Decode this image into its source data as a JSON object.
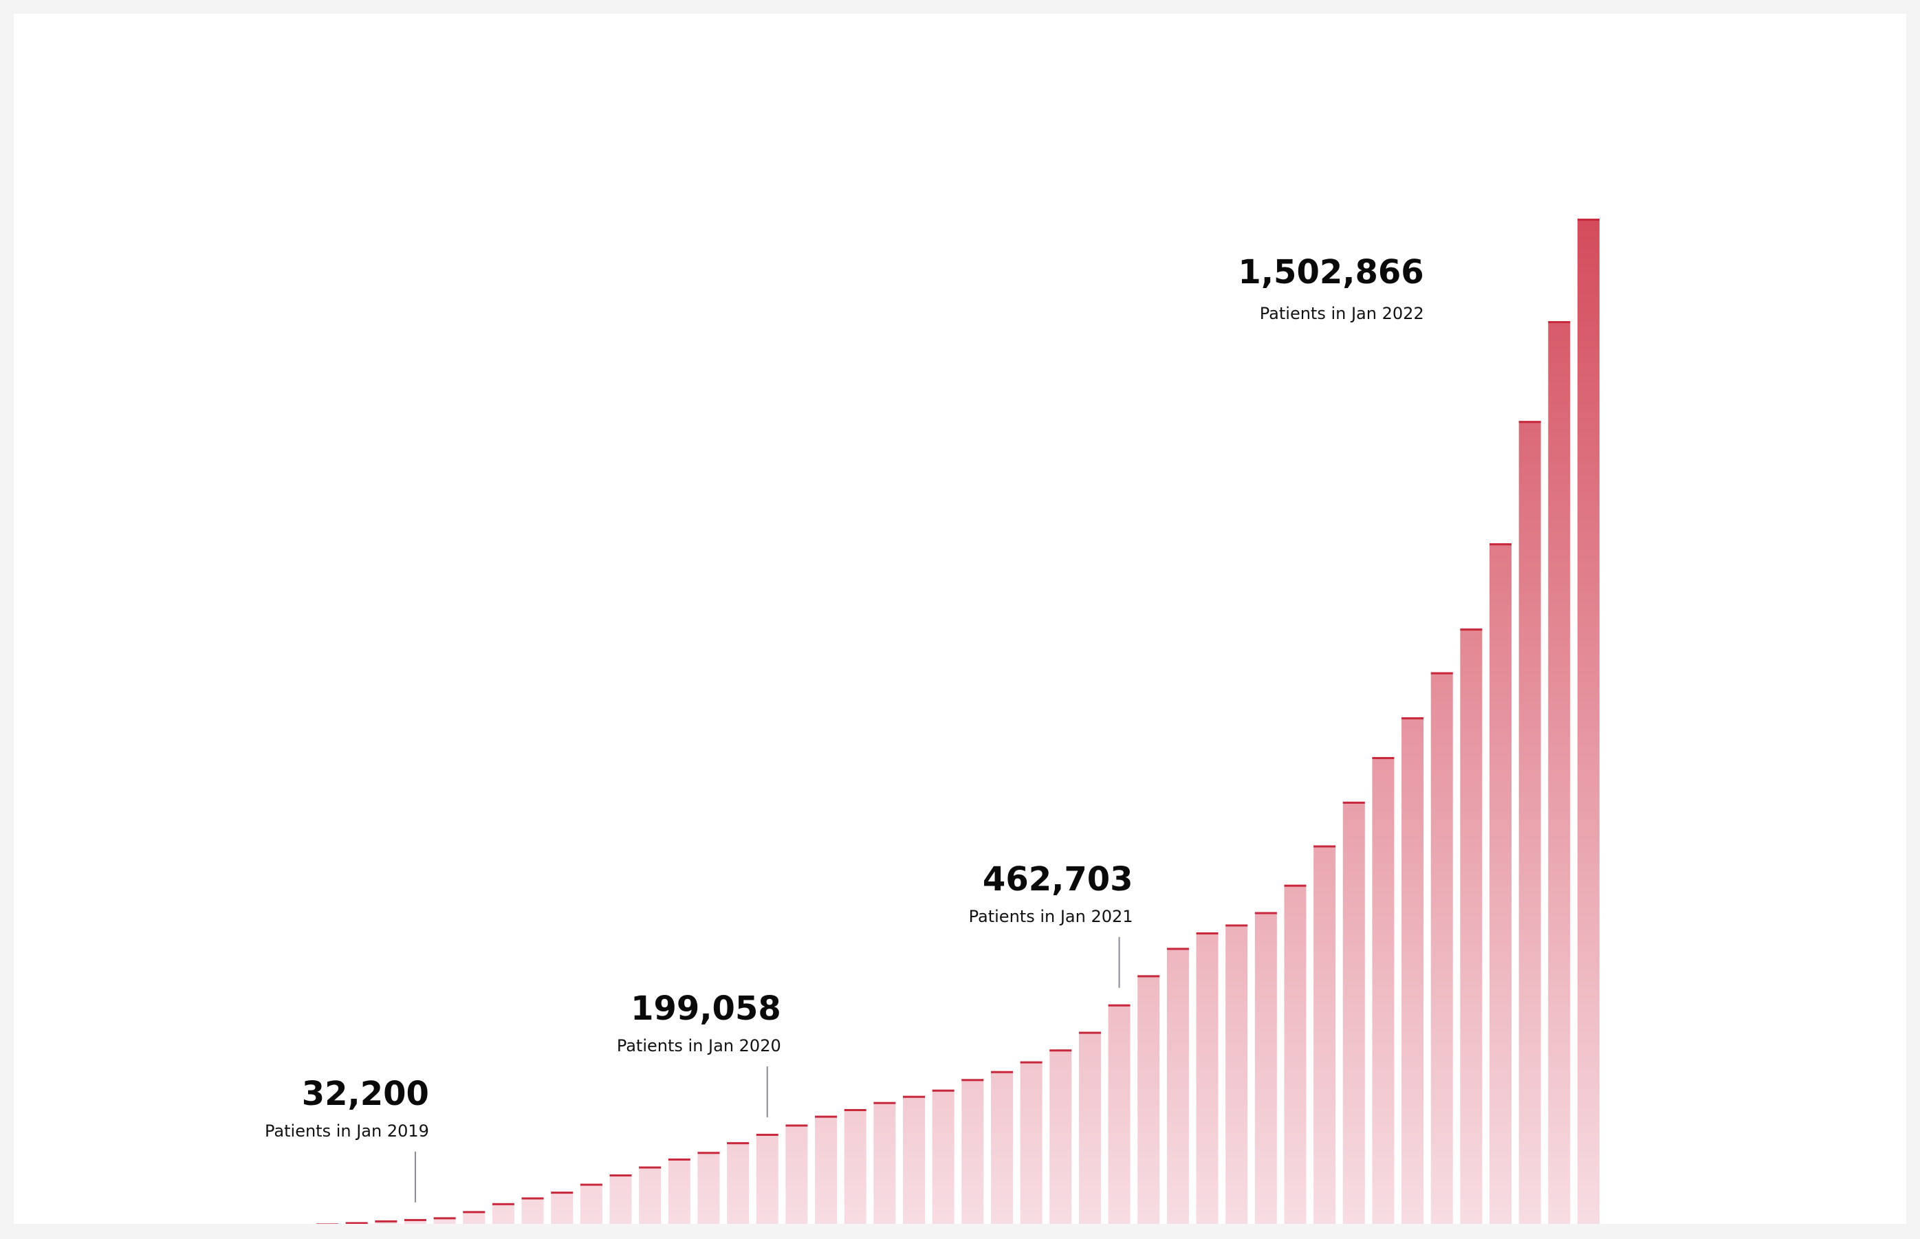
{
  "chart_data": {
    "type": "bar",
    "title": "",
    "xlabel": "",
    "ylabel": "",
    "grid": false,
    "legend": "none",
    "x_start": "Jan 2019",
    "x_end": "Jan 2023",
    "ylim": [
      0,
      2740000
    ],
    "colors": {
      "bar_top": "#cd3143",
      "bar_bottom": "#f7dde3",
      "cap": "#c8283b",
      "leader_line": "#8a8a9e"
    },
    "values": [
      1000,
      4000,
      8000,
      11000,
      15000,
      29000,
      47000,
      60000,
      73000,
      91000,
      112000,
      130000,
      148000,
      163000,
      185000,
      204000,
      225000,
      245000,
      260000,
      276000,
      290000,
      304000,
      328000,
      346000,
      368000,
      395000,
      435000,
      497000,
      563000,
      625000,
      660000,
      678000,
      706000,
      768000,
      857000,
      956000,
      1057000,
      1147000,
      1249000,
      1348000,
      1541000,
      1818000,
      2044000,
      2276000
    ],
    "annotations": [
      {
        "index": 3,
        "value": "32,200",
        "label": "Patients in Jan 2019"
      },
      {
        "index": 15,
        "value": "199,058",
        "label": "Patients in Jan 2020"
      },
      {
        "index": 27,
        "value": "462,703",
        "label": "Patients in Jan 2021"
      },
      {
        "index": 39,
        "value": "1,502,866",
        "label": "Patients in Jan 2022"
      }
    ]
  }
}
